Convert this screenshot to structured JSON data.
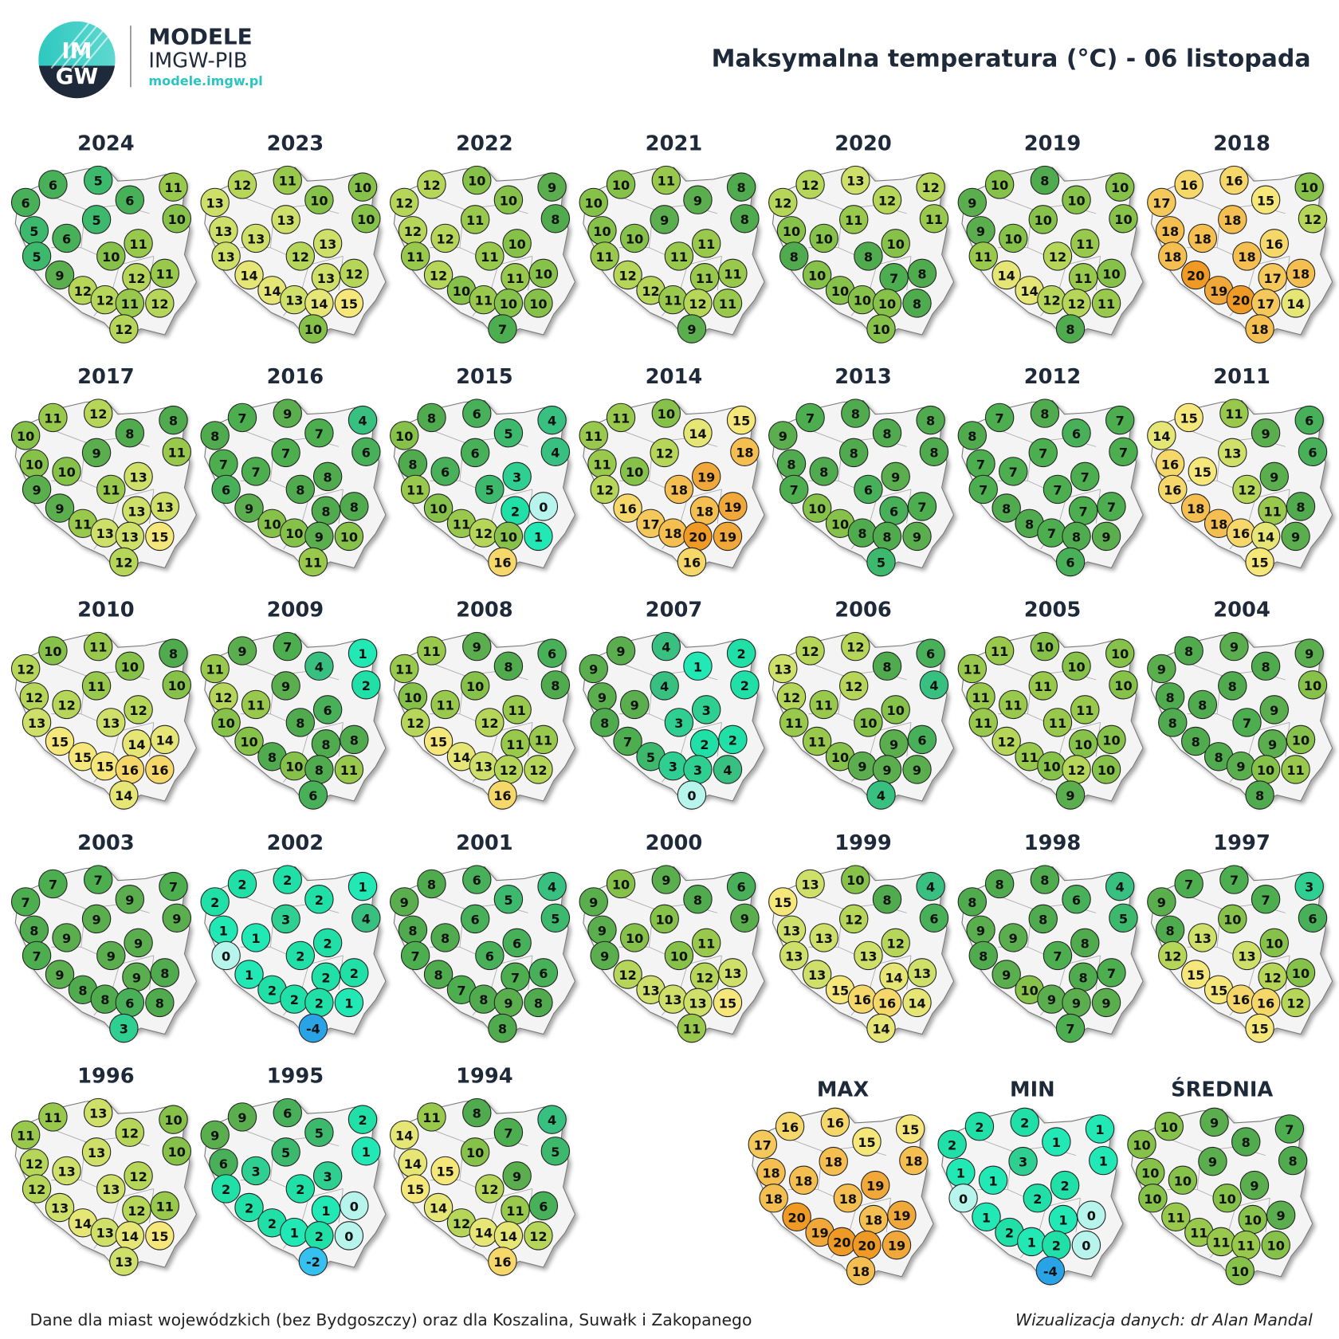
{
  "header": {
    "logo_top": "IM",
    "logo_bottom": "GW",
    "brand": "MODELE",
    "brand_sub": "IMGW-PIB",
    "brand_url": "modele.imgw.pl",
    "title": "Maksymalna temperatura (°C) - 06 listopada"
  },
  "years": [
    {
      "label": "2024",
      "values": [
        6,
        6,
        5,
        6,
        11,
        10,
        5,
        5,
        6,
        11,
        10,
        5,
        9,
        12,
        12,
        12,
        11,
        11,
        12,
        12
      ]
    },
    {
      "label": "2023",
      "values": [
        13,
        12,
        11,
        10,
        10,
        10,
        13,
        13,
        13,
        13,
        12,
        13,
        14,
        14,
        13,
        13,
        14,
        12,
        15,
        10
      ]
    },
    {
      "label": "2022",
      "values": [
        12,
        12,
        10,
        10,
        9,
        8,
        12,
        11,
        12,
        10,
        11,
        11,
        12,
        10,
        11,
        11,
        10,
        10,
        10,
        7
      ]
    },
    {
      "label": "2021",
      "values": [
        10,
        10,
        11,
        9,
        8,
        8,
        10,
        9,
        10,
        11,
        11,
        11,
        12,
        12,
        11,
        11,
        12,
        11,
        11,
        9
      ]
    },
    {
      "label": "2020",
      "values": [
        12,
        12,
        13,
        12,
        12,
        11,
        10,
        11,
        10,
        10,
        8,
        8,
        10,
        10,
        10,
        7,
        10,
        8,
        8,
        10
      ]
    },
    {
      "label": "2019",
      "values": [
        9,
        10,
        8,
        10,
        10,
        10,
        9,
        10,
        10,
        11,
        12,
        11,
        14,
        14,
        12,
        11,
        12,
        10,
        11,
        8
      ]
    },
    {
      "label": "2018",
      "values": [
        17,
        16,
        16,
        15,
        10,
        12,
        18,
        18,
        18,
        16,
        18,
        18,
        20,
        19,
        20,
        17,
        17,
        18,
        14,
        18
      ]
    },
    {
      "label": "2017",
      "values": [
        10,
        11,
        12,
        8,
        8,
        11,
        10,
        9,
        10,
        13,
        11,
        9,
        9,
        11,
        13,
        13,
        13,
        13,
        15,
        12
      ]
    },
    {
      "label": "2016",
      "values": [
        8,
        7,
        9,
        7,
        4,
        6,
        7,
        7,
        7,
        8,
        8,
        6,
        9,
        10,
        10,
        8,
        9,
        8,
        10,
        11
      ]
    },
    {
      "label": "2015",
      "values": [
        10,
        8,
        6,
        5,
        4,
        4,
        8,
        6,
        6,
        3,
        5,
        11,
        10,
        11,
        12,
        2,
        10,
        0,
        1,
        16
      ]
    },
    {
      "label": "2014",
      "values": [
        11,
        11,
        10,
        14,
        15,
        18,
        11,
        12,
        10,
        19,
        18,
        12,
        16,
        17,
        18,
        18,
        20,
        19,
        19,
        16
      ]
    },
    {
      "label": "2013",
      "values": [
        9,
        7,
        8,
        8,
        8,
        8,
        8,
        8,
        8,
        9,
        6,
        7,
        10,
        10,
        8,
        6,
        8,
        7,
        9,
        5
      ]
    },
    {
      "label": "2012",
      "values": [
        8,
        7,
        8,
        6,
        7,
        7,
        7,
        7,
        7,
        7,
        7,
        7,
        8,
        8,
        7,
        7,
        8,
        7,
        9,
        6
      ]
    },
    {
      "label": "2011",
      "values": [
        14,
        15,
        11,
        9,
        6,
        6,
        16,
        13,
        15,
        9,
        12,
        16,
        18,
        18,
        16,
        11,
        14,
        8,
        9,
        15
      ]
    },
    {
      "label": "2010",
      "values": [
        12,
        10,
        11,
        10,
        8,
        10,
        12,
        11,
        12,
        12,
        13,
        13,
        15,
        15,
        15,
        14,
        16,
        14,
        16,
        14
      ]
    },
    {
      "label": "2009",
      "values": [
        11,
        9,
        7,
        4,
        1,
        2,
        12,
        9,
        11,
        6,
        8,
        10,
        10,
        8,
        10,
        8,
        8,
        8,
        11,
        6
      ]
    },
    {
      "label": "2008",
      "values": [
        11,
        11,
        9,
        8,
        6,
        8,
        10,
        10,
        11,
        11,
        12,
        12,
        15,
        14,
        13,
        11,
        12,
        11,
        12,
        16
      ]
    },
    {
      "label": "2007",
      "values": [
        9,
        9,
        4,
        1,
        2,
        2,
        9,
        4,
        9,
        3,
        3,
        8,
        7,
        5,
        3,
        2,
        3,
        2,
        4,
        0
      ]
    },
    {
      "label": "2006",
      "values": [
        13,
        12,
        12,
        8,
        6,
        4,
        12,
        12,
        11,
        10,
        10,
        11,
        11,
        10,
        9,
        9,
        9,
        6,
        9,
        4
      ]
    },
    {
      "label": "2005",
      "values": [
        11,
        11,
        10,
        10,
        10,
        10,
        11,
        11,
        11,
        11,
        11,
        11,
        12,
        11,
        10,
        10,
        12,
        10,
        10,
        9
      ]
    },
    {
      "label": "2004",
      "values": [
        9,
        8,
        9,
        8,
        9,
        10,
        8,
        8,
        8,
        9,
        7,
        8,
        8,
        8,
        9,
        9,
        10,
        10,
        11,
        8
      ]
    },
    {
      "label": "2003",
      "values": [
        7,
        7,
        7,
        9,
        7,
        9,
        8,
        9,
        9,
        9,
        9,
        7,
        9,
        8,
        8,
        9,
        6,
        8,
        8,
        3
      ]
    },
    {
      "label": "2002",
      "values": [
        2,
        2,
        2,
        2,
        1,
        4,
        1,
        3,
        1,
        2,
        2,
        0,
        1,
        2,
        2,
        2,
        2,
        2,
        1,
        -4
      ]
    },
    {
      "label": "2001",
      "values": [
        9,
        8,
        6,
        5,
        4,
        5,
        8,
        6,
        8,
        6,
        6,
        7,
        8,
        7,
        8,
        7,
        9,
        6,
        8,
        8
      ]
    },
    {
      "label": "2000",
      "values": [
        9,
        10,
        9,
        8,
        6,
        9,
        9,
        10,
        10,
        11,
        10,
        9,
        12,
        13,
        13,
        12,
        13,
        13,
        15,
        11
      ]
    },
    {
      "label": "1999",
      "values": [
        15,
        13,
        10,
        8,
        4,
        6,
        13,
        12,
        13,
        12,
        13,
        13,
        13,
        15,
        16,
        14,
        16,
        13,
        14,
        14
      ]
    },
    {
      "label": "1998",
      "values": [
        8,
        8,
        8,
        6,
        4,
        5,
        9,
        8,
        9,
        8,
        7,
        8,
        9,
        10,
        9,
        8,
        9,
        7,
        9,
        7
      ]
    },
    {
      "label": "1997",
      "values": [
        9,
        7,
        7,
        7,
        3,
        6,
        8,
        10,
        13,
        10,
        13,
        12,
        15,
        15,
        16,
        12,
        16,
        10,
        12,
        15
      ]
    },
    {
      "label": "1996",
      "values": [
        11,
        11,
        13,
        12,
        10,
        10,
        12,
        13,
        13,
        12,
        13,
        12,
        13,
        14,
        13,
        12,
        14,
        11,
        15,
        13
      ]
    },
    {
      "label": "1995",
      "values": [
        9,
        9,
        6,
        5,
        2,
        1,
        6,
        5,
        3,
        3,
        2,
        2,
        2,
        2,
        1,
        1,
        2,
        0,
        0,
        -2
      ]
    },
    {
      "label": "1994",
      "values": [
        14,
        11,
        8,
        7,
        4,
        5,
        14,
        10,
        15,
        9,
        12,
        15,
        14,
        12,
        14,
        11,
        14,
        6,
        12,
        16
      ]
    }
  ],
  "summary": [
    {
      "label": "MAX",
      "values": [
        17,
        16,
        16,
        15,
        15,
        18,
        18,
        18,
        18,
        19,
        18,
        18,
        20,
        19,
        20,
        18,
        20,
        19,
        19,
        18
      ]
    },
    {
      "label": "MIN",
      "values": [
        2,
        2,
        2,
        1,
        1,
        1,
        1,
        3,
        1,
        2,
        2,
        0,
        1,
        2,
        1,
        1,
        2,
        0,
        0,
        -4
      ]
    },
    {
      "label": "ŚREDNIA",
      "values": [
        10,
        10,
        9,
        8,
        7,
        8,
        10,
        9,
        10,
        9,
        10,
        10,
        11,
        11,
        11,
        10,
        11,
        9,
        10,
        10
      ]
    }
  ],
  "footer": {
    "note": "Dane dla miast wojewódzkich (bez Bydgoszczy) oraz dla Koszalina, Suwałk i Zakopanego",
    "credit": "Wizualizacja danych: dr Alan Mandal"
  }
}
